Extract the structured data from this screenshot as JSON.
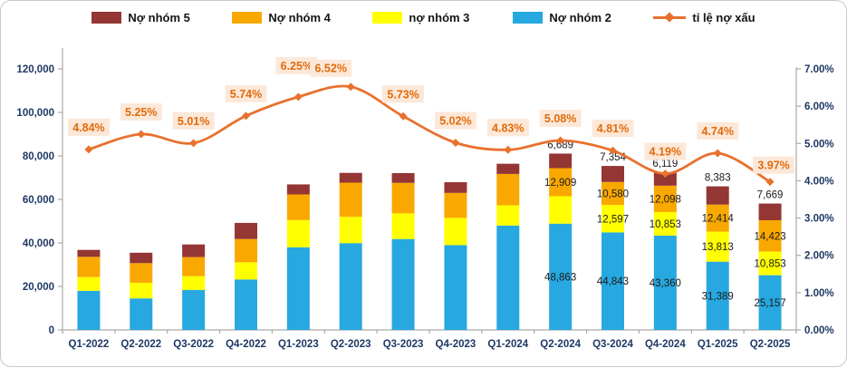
{
  "legend": {
    "items": [
      {
        "label": "Nợ nhóm 5",
        "color": "#943634",
        "marker": "swatch"
      },
      {
        "label": "Nợ nhóm 4",
        "color": "#F9A800",
        "marker": "swatch"
      },
      {
        "label": "nợ nhóm 3",
        "color": "#FFFF00",
        "marker": "swatch"
      },
      {
        "label": "Nợ nhóm 2",
        "color": "#27A8E0",
        "marker": "swatch"
      },
      {
        "label": "tỉ lệ nợ xấu",
        "color": "#E8712E",
        "marker": "line-diamond"
      }
    ]
  },
  "chart_data": {
    "type": "bar",
    "subtype": "stacked-column-with-line-overlay",
    "grid": false,
    "legend_position": "top",
    "categories": [
      "Q1-2022",
      "Q2-2022",
      "Q3-2022",
      "Q4-2022",
      "Q1-2023",
      "Q2-2023",
      "Q3-2023",
      "Q4-2023",
      "Q1-2024",
      "Q2-2024",
      "Q3-2024",
      "Q4-2024",
      "Q1-2025",
      "Q2-2025"
    ],
    "series": [
      {
        "key": "no2",
        "name": "Nợ nhóm 2",
        "color": "#27A8E0",
        "values": [
          18000,
          14500,
          18400,
          23200,
          38000,
          39900,
          41800,
          39000,
          48000,
          48863,
          44843,
          43360,
          31389,
          25157
        ]
      },
      {
        "key": "no3",
        "name": "nợ nhóm 3",
        "color": "#FFFF00",
        "values": [
          6300,
          7200,
          6300,
          7900,
          12500,
          12100,
          11800,
          12500,
          9300,
          12600,
          12597,
          10853,
          13813,
          10853
        ]
      },
      {
        "key": "no4",
        "name": "Nợ nhóm 4",
        "color": "#F9A800",
        "values": [
          9300,
          9000,
          8800,
          10700,
          11800,
          15700,
          14000,
          11500,
          14400,
          12909,
          10580,
          12098,
          12414,
          14423
        ]
      },
      {
        "key": "no5",
        "name": "Nợ nhóm 5",
        "color": "#943634",
        "values": [
          3200,
          4800,
          5800,
          7400,
          4600,
          4500,
          4500,
          4900,
          4700,
          6689,
          7354,
          6119,
          8383,
          7669
        ]
      }
    ],
    "line_series": {
      "key": "ratio",
      "name": "tỉ lệ nợ xấu",
      "color": "#E8712E",
      "axis": "right",
      "values": [
        4.84,
        5.25,
        5.01,
        5.74,
        6.25,
        6.52,
        5.73,
        5.02,
        4.83,
        5.08,
        4.81,
        4.19,
        4.74,
        3.97
      ],
      "labels": [
        "4.84%",
        "5.25%",
        "5.01%",
        "5.74%",
        "6.25%",
        "6.52%",
        "5.73%",
        "5.02%",
        "4.83%",
        "5.08%",
        "4.81%",
        "4.19%",
        "4.74%",
        "3.97%"
      ]
    },
    "bar_value_labels": [
      {
        "category_index": 9,
        "no5": "6,689",
        "no4": "12,909",
        "no2": "48,863"
      },
      {
        "category_index": 10,
        "no5": "7,354",
        "no4": "10,580",
        "no3": "12,597",
        "no2": "44,843"
      },
      {
        "category_index": 11,
        "no5": "6,119",
        "no4": "12,098",
        "no3": "10,853",
        "no2": "43,360"
      },
      {
        "category_index": 12,
        "no5": "8,383",
        "no4": "12,414",
        "no3": "13,813",
        "no2": "31,389"
      },
      {
        "category_index": 13,
        "no5": "7,669",
        "no4": "14,423",
        "no3": "10,853",
        "no2": "25,157"
      }
    ],
    "left_axis": {
      "min": 0,
      "max": 120000,
      "ticks": [
        "0",
        "20,000",
        "40,000",
        "60,000",
        "80,000",
        "100,000",
        "120,000"
      ]
    },
    "right_axis": {
      "min": 0,
      "max": 7,
      "ticks": [
        "0.00%",
        "1.00%",
        "2.00%",
        "3.00%",
        "4.00%",
        "5.00%",
        "6.00%",
        "7.00%"
      ]
    },
    "colors": {
      "line_label_bg": "#FCE8D9",
      "line_label_text": "#E26B0A",
      "axis_text": "#1F3864",
      "bar_label_text": "#1A1A1A",
      "axis_line": "#ABABAB"
    }
  }
}
